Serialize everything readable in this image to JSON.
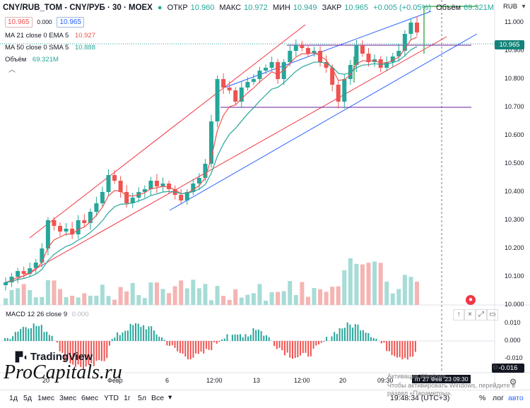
{
  "header": {
    "symbol": "CNY/RUB_TOM - CNY/РУБ · 30 · MOEX",
    "open_label": "ОТКР",
    "open": "10.960",
    "high_label": "МАКС",
    "high": "10.972",
    "low_label": "МИН",
    "low": "10.949",
    "close_label": "ЗАКР",
    "close": "10.965",
    "change": "+0.005 (+0.05%)",
    "volume_label": "Объём",
    "volume": "69.321M",
    "bid": "10.965",
    "spread": "0.000",
    "ask": "10.965"
  },
  "indicators": {
    "ma21_label": "MA 21 close 0 EMA 5",
    "ma21_value": "10.927",
    "ma50_label": "MA 50 close 0 SMA 5",
    "ma50_value": "10.888",
    "vol_label": "Объём",
    "vol_value": "69.321M",
    "macd_label": "MACD 12 26 close 9",
    "macd_value": "0.000"
  },
  "price_axis": {
    "currency": "RUB",
    "last_price": "10.965",
    "ticks": [
      "11.000",
      "10.900",
      "10.800",
      "10.700",
      "10.600",
      "10.500",
      "10.400",
      "10.300",
      "10.200",
      "10.100",
      "10.000"
    ]
  },
  "macd_axis": {
    "ticks": [
      "0.010",
      "0.000",
      "-0.010"
    ],
    "last": "-0.016"
  },
  "time_axis": {
    "ticks": [
      "20",
      "Февр",
      "6",
      "12:00",
      "13",
      "12:00",
      "20",
      "09:30"
    ],
    "crosshair": "пт 27 Фев '23 09:30"
  },
  "toolbar": {
    "ranges": [
      "1д",
      "5д",
      "1мес",
      "3мес",
      "6мес",
      "YTD",
      "1г",
      "5л",
      "Все"
    ],
    "clock": "19:48:34 (UTC+3)",
    "percent": "%",
    "log": "лог",
    "auto": "авто"
  },
  "brand": {
    "tradingview": "TradingView",
    "watermark": "ProCapitals.ru"
  },
  "windows_notice": {
    "line1": "Активация Windows",
    "line2": "Чтобы активировать Windows, перейдите в",
    "line3": "раздел «Параметры»."
  },
  "colors": {
    "up": "#26a69a",
    "down": "#ef5350",
    "ema": "#ef5350",
    "sma": "#26a69a",
    "channel_blue": "#2962ff",
    "channel_red": "#f23645",
    "level": "#6a1b9a"
  },
  "chart_data": {
    "type": "candlestick",
    "ylim": [
      10.0,
      11.08
    ],
    "close_series": [
      10.08,
      10.1,
      10.12,
      10.11,
      10.13,
      10.15,
      10.2,
      10.3,
      10.28,
      10.26,
      10.27,
      10.25,
      10.3,
      10.29,
      10.33,
      10.36,
      10.4,
      10.46,
      10.44,
      10.4,
      10.36,
      10.38,
      10.4,
      10.41,
      10.44,
      10.42,
      10.43,
      10.41,
      10.39,
      10.37,
      10.4,
      10.43,
      10.45,
      10.5,
      10.65,
      10.8,
      10.77,
      10.76,
      10.72,
      10.77,
      10.79,
      10.8,
      10.83,
      10.84,
      10.86,
      10.8,
      10.86,
      10.9,
      10.92,
      10.91,
      10.89,
      10.9,
      10.86,
      10.84,
      10.78,
      10.72,
      10.8,
      10.85,
      10.92,
      10.89,
      10.86,
      10.87,
      10.84,
      10.86,
      10.88,
      10.9,
      10.96,
      11.0,
      10.965
    ],
    "levels": [
      10.92,
      10.7
    ],
    "macd_ylim": [
      -0.02,
      0.015
    ]
  }
}
